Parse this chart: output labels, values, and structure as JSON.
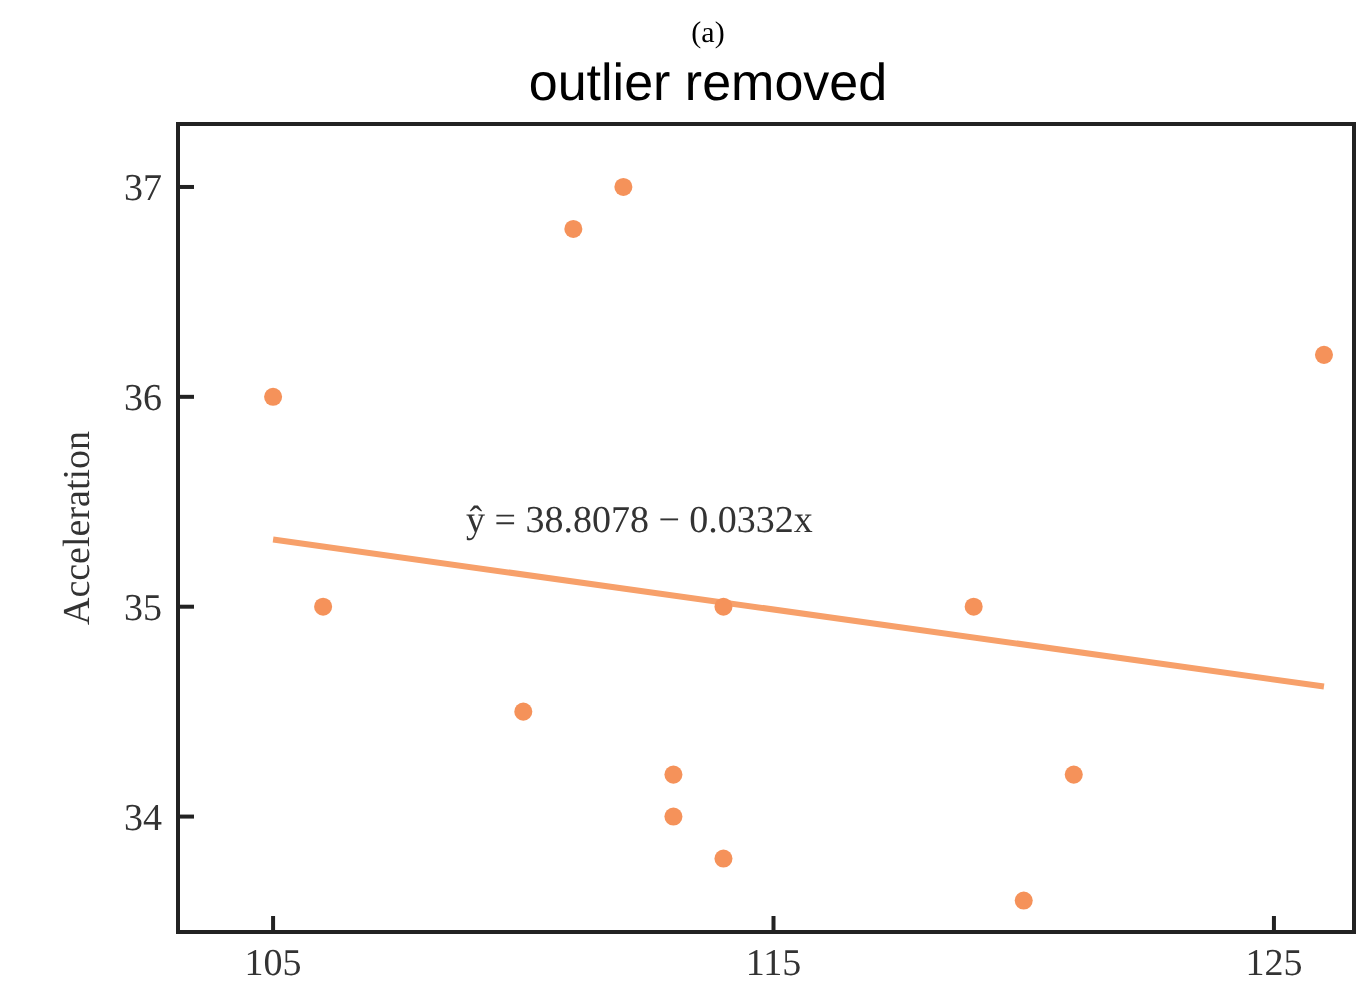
{
  "chart_data": {
    "type": "scatter",
    "title": "(a)",
    "subtitle": "outlier removed",
    "ylabel": "Acceleration",
    "annotations": [
      "ŷ = 38.8078 − 0.0332x"
    ],
    "series": [
      {
        "color": "#f5925a",
        "x": [
          105,
          106,
          110,
          111,
          112,
          113,
          113,
          114,
          114,
          119,
          120,
          121,
          126
        ],
        "values": [
          36,
          35,
          34.5,
          36.8,
          37,
          34.2,
          34,
          33.8,
          35,
          35,
          33.6,
          34.2,
          36.2
        ]
      },
      {
        "type": "line",
        "marker": "none",
        "color": "#f7a06a",
        "x": [
          105,
          126
        ],
        "values": [
          35.32,
          34.62
        ]
      }
    ],
    "xlim": [
      103.1,
      126.6
    ],
    "xticks": [
      105,
      115,
      125
    ],
    "ylim": [
      33.45,
      37.3
    ],
    "yticks": [
      34,
      35,
      36,
      37
    ],
    "grid": false,
    "marker": "circle",
    "line_style": "solid"
  }
}
